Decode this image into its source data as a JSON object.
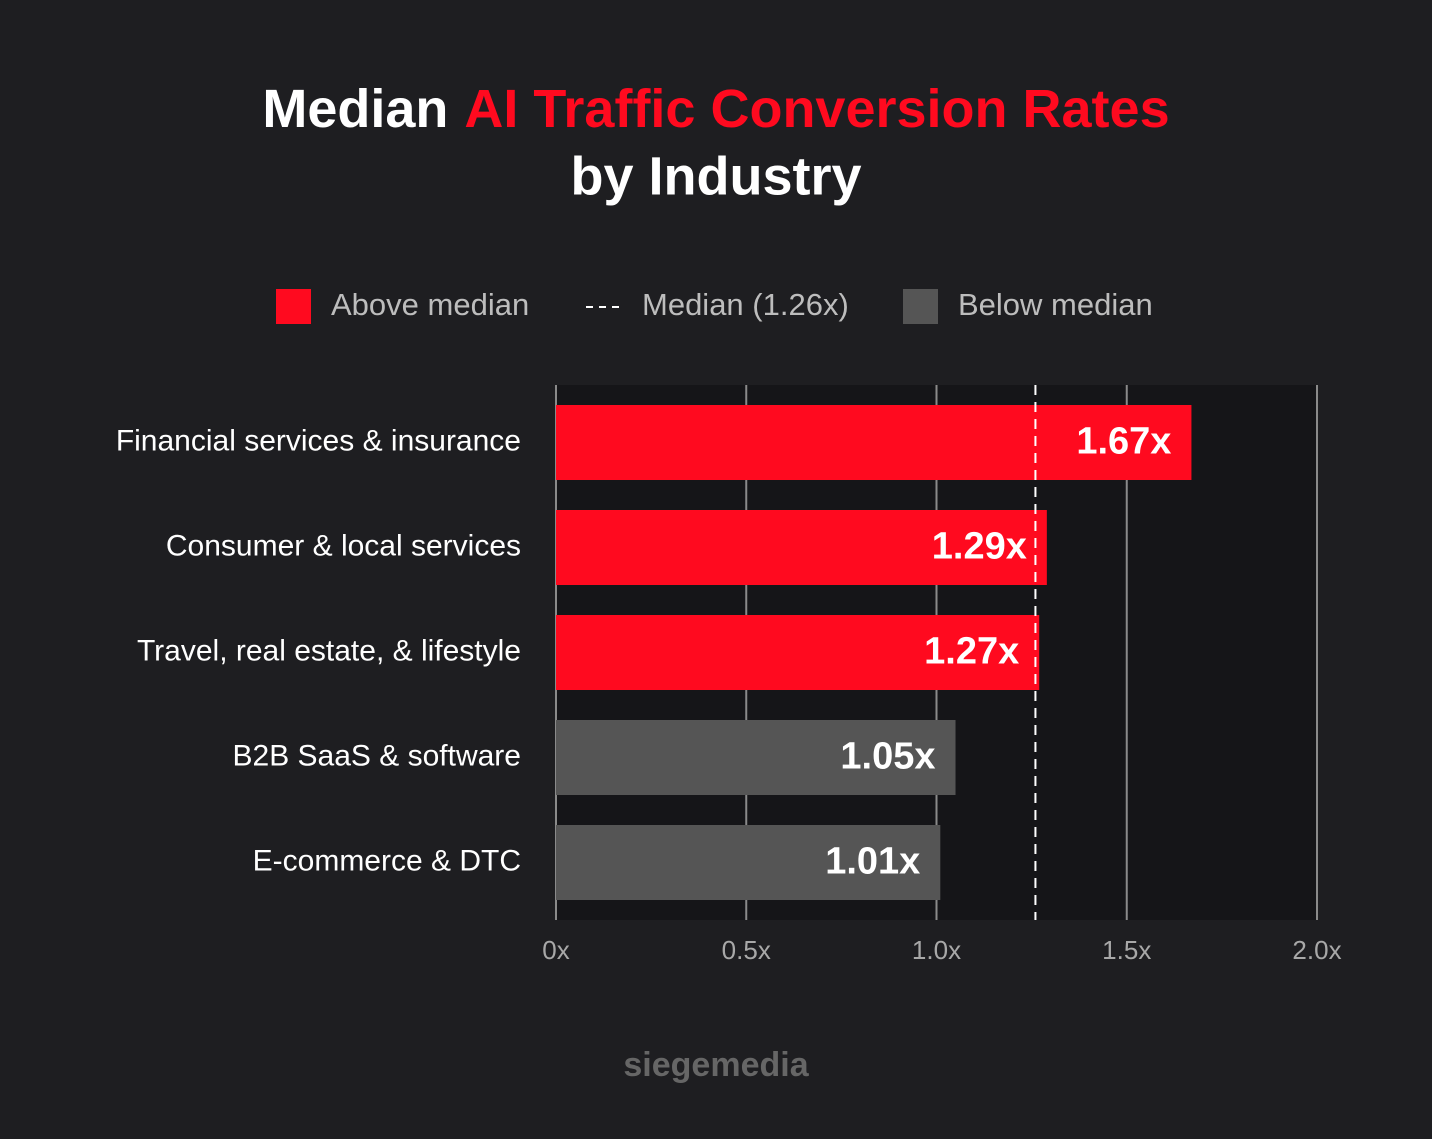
{
  "chart_data": {
    "type": "bar",
    "orientation": "horizontal",
    "title": [
      "Median",
      "AI Traffic Conversion Rates",
      "by Industry"
    ],
    "title_highlight_color": "#ff0a1f",
    "categories": [
      "Financial services & insurance",
      "Consumer & local services",
      "Travel, real estate, & lifestyle",
      "B2B SaaS & software",
      "E-commerce & DTC"
    ],
    "series": [
      {
        "name": "Above median",
        "color": "#ff0a1f",
        "values": [
          1.67,
          1.29,
          1.27,
          null,
          null
        ],
        "value_labels": [
          "1.67x",
          "1.29x",
          "1.27x",
          null,
          null
        ]
      },
      {
        "name": "Below median",
        "color": "#555555",
        "values": [
          null,
          null,
          null,
          1.05,
          1.01
        ],
        "value_labels": [
          null,
          null,
          null,
          "1.05x",
          "1.01x"
        ]
      }
    ],
    "reference_line": {
      "value": 1.26,
      "label": "Median (1.26x)",
      "color": "#ffffff",
      "dashed": true
    },
    "xlim": [
      0,
      2
    ],
    "xticks": [
      {
        "value": 0,
        "label": "0x"
      },
      {
        "value": 0.5,
        "label": "0.5x"
      },
      {
        "value": 1,
        "label": "1.0x"
      },
      {
        "value": 1.5,
        "label": "1.5x"
      },
      {
        "value": 2,
        "label": "2.0x"
      }
    ],
    "grid": true,
    "footer": "siegemedia"
  }
}
